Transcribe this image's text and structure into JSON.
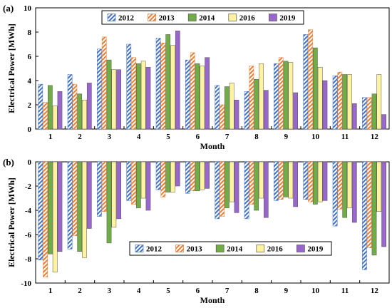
{
  "chart_data": [
    {
      "type": "bar",
      "panel_label": "(a)",
      "xlabel": "Month",
      "ylabel": "Electrical Power [MWh]",
      "ylim": [
        0,
        10
      ],
      "yticks": [
        0,
        2,
        4,
        6,
        8,
        10
      ],
      "categories": [
        "1",
        "2",
        "3",
        "4",
        "5",
        "6",
        "7",
        "8",
        "9",
        "10",
        "11",
        "12"
      ],
      "grid": false,
      "legend_position": "top-right",
      "series": [
        {
          "name": "2012",
          "color": "#4472C4",
          "pattern": "hatch",
          "values": [
            3.7,
            4.5,
            6.6,
            7.0,
            7.5,
            5.7,
            3.6,
            3.1,
            5.4,
            7.8,
            4.4,
            2.6
          ]
        },
        {
          "name": "2013",
          "color": "#ED7D31",
          "pattern": "hatch",
          "values": [
            2.2,
            3.7,
            7.6,
            5.9,
            7.1,
            6.3,
            2.0,
            5.2,
            5.9,
            8.2,
            4.7,
            2.6
          ]
        },
        {
          "name": "2014",
          "color": "#70AD47",
          "pattern": "solid",
          "values": [
            3.6,
            2.9,
            5.7,
            5.4,
            7.8,
            5.4,
            3.5,
            4.1,
            5.6,
            6.7,
            4.5,
            2.9
          ]
        },
        {
          "name": "2016",
          "color": "#FFF2A0",
          "pattern": "solid",
          "values": [
            1.9,
            2.4,
            4.9,
            5.6,
            6.9,
            5.2,
            3.8,
            5.4,
            5.5,
            5.1,
            4.5,
            4.5
          ]
        },
        {
          "name": "2019",
          "color": "#9966CC",
          "pattern": "solid",
          "values": [
            3.1,
            3.8,
            4.9,
            5.1,
            8.1,
            5.9,
            2.4,
            3.2,
            3.0,
            4.0,
            2.1,
            1.2
          ]
        }
      ]
    },
    {
      "type": "bar",
      "panel_label": "(b)",
      "xlabel": "Month",
      "ylabel": "Electrical Power [MWh]",
      "ylim": [
        -10,
        0
      ],
      "yticks": [
        0,
        -2,
        -4,
        -6,
        -8,
        -10
      ],
      "categories": [
        "1",
        "2",
        "3",
        "4",
        "5",
        "6",
        "7",
        "8",
        "9",
        "10",
        "11",
        "12"
      ],
      "grid": false,
      "legend_position": "bottom-center",
      "series": [
        {
          "name": "2012",
          "color": "#4472C4",
          "pattern": "hatch",
          "values": [
            -8.1,
            -7.2,
            -4.5,
            -3.2,
            -2.3,
            -2.6,
            -4.7,
            -4.7,
            -3.2,
            -3.1,
            -5.3,
            -8.9
          ]
        },
        {
          "name": "2013",
          "color": "#ED7D31",
          "pattern": "hatch",
          "values": [
            -9.5,
            -6.1,
            -4.1,
            -3.5,
            -2.9,
            -2.4,
            -4.5,
            -3.5,
            -3.1,
            -3.3,
            -3.9,
            -7.1
          ]
        },
        {
          "name": "2014",
          "color": "#70AD47",
          "pattern": "solid",
          "values": [
            -7.6,
            -7.4,
            -6.7,
            -3.8,
            -2.5,
            -2.4,
            -3.8,
            -4.0,
            -2.9,
            -3.5,
            -4.6,
            -7.7
          ]
        },
        {
          "name": "2016",
          "color": "#FFF2A0",
          "pattern": "solid",
          "values": [
            -9.1,
            -7.9,
            -5.4,
            -3.0,
            -2.5,
            -2.3,
            -3.3,
            -3.0,
            -3.0,
            -3.3,
            -3.8,
            -4.1
          ]
        },
        {
          "name": "2019",
          "color": "#9966CC",
          "pattern": "solid",
          "values": [
            -7.4,
            -5.5,
            -4.7,
            -4.0,
            -2.0,
            -2.2,
            -4.2,
            -4.6,
            -3.7,
            -3.2,
            -5.0,
            -7.0
          ]
        }
      ]
    }
  ]
}
